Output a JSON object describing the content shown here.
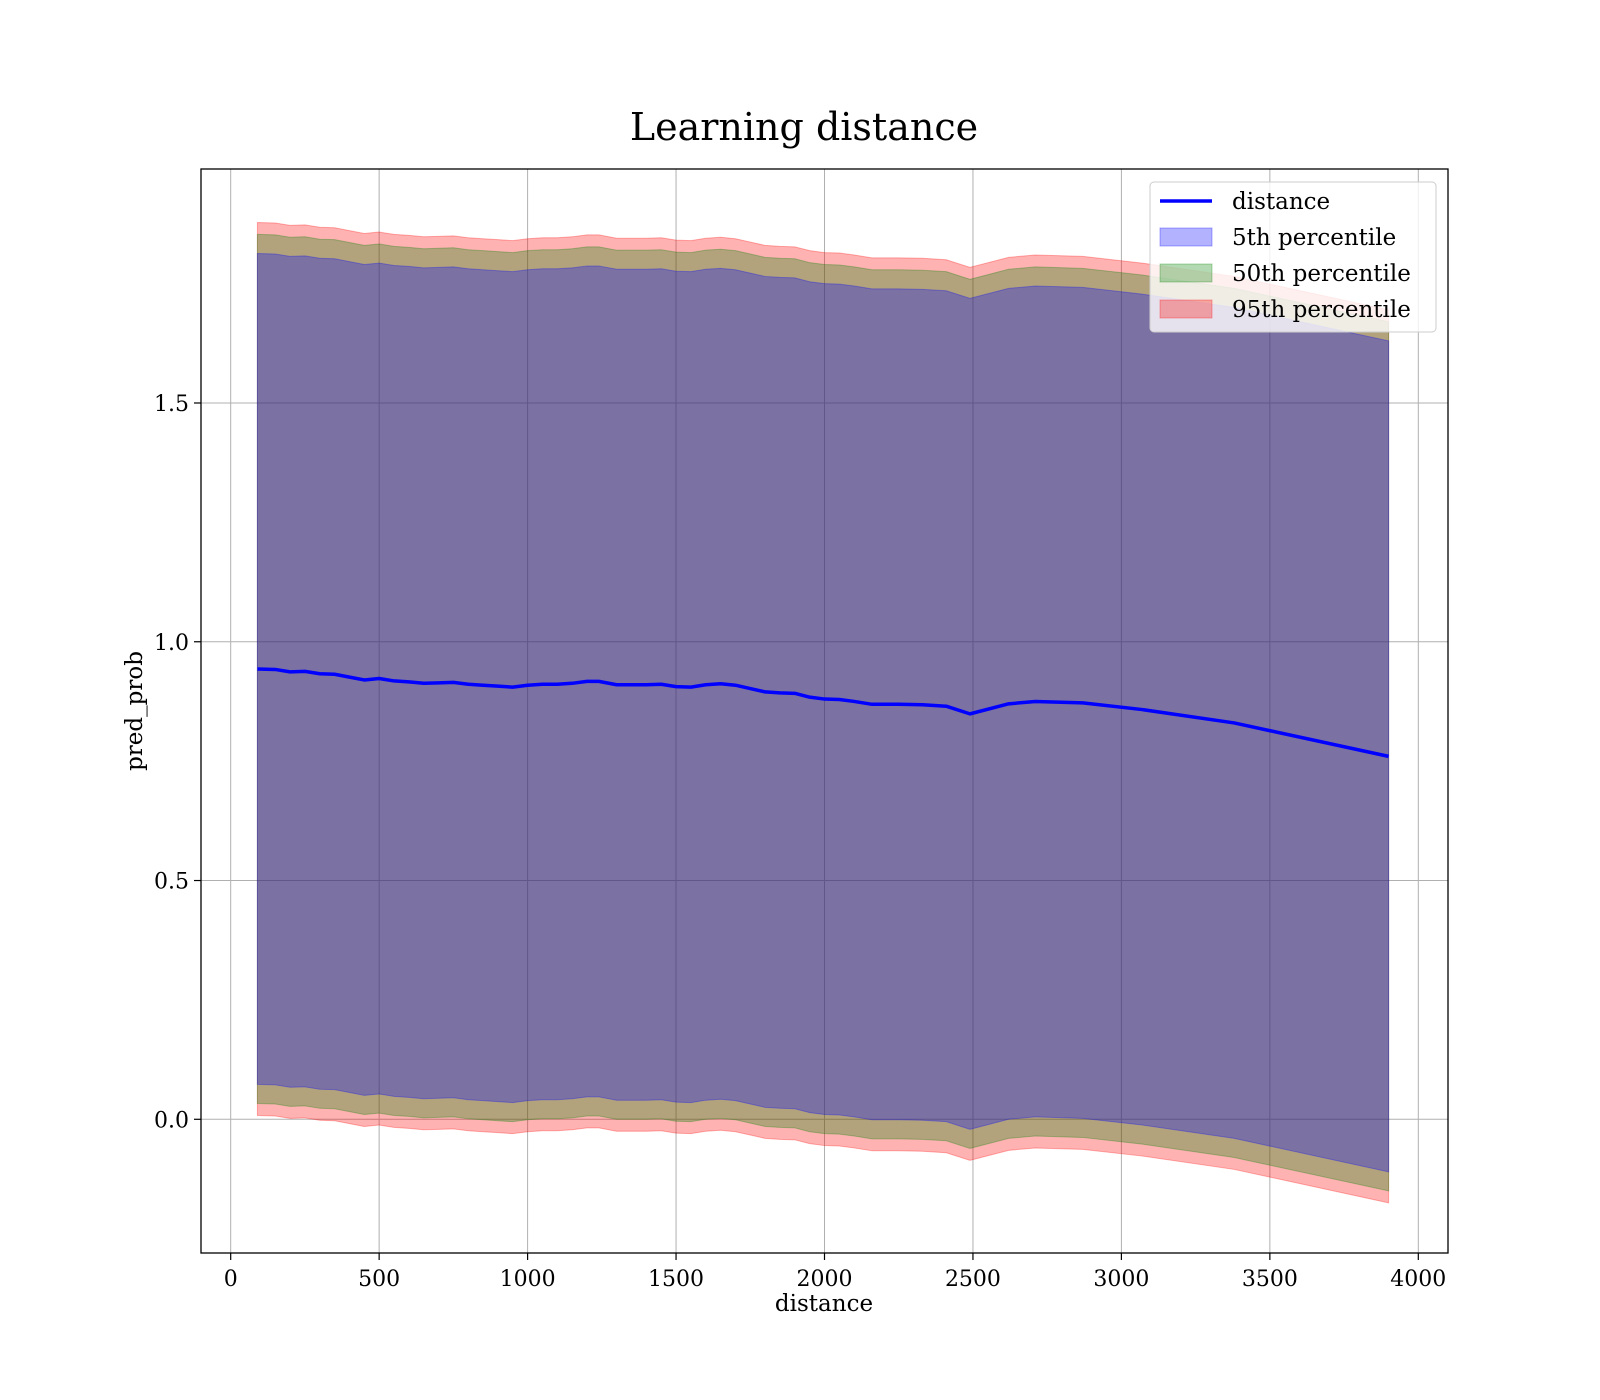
{
  "chart_data": {
    "type": "line",
    "title": "Learning distance",
    "xlabel": "distance",
    "ylabel": "pred_prob",
    "xlim": [
      -100,
      4100
    ],
    "ylim": [
      -0.28,
      1.99
    ],
    "xticks": [
      0,
      500,
      1000,
      1500,
      2000,
      2500,
      3000,
      3500,
      4000
    ],
    "xtick_labels": [
      "0",
      "500",
      "1000",
      "1500",
      "2000",
      "2500",
      "3000",
      "3500",
      "4000"
    ],
    "yticks": [
      0.0,
      0.5,
      1.0,
      1.5
    ],
    "ytick_labels": [
      "0.0",
      "0.5",
      "1.0",
      "1.5"
    ],
    "grid": true,
    "legend_position": "top-right",
    "legend": [
      {
        "label": "distance",
        "kind": "line",
        "color": "#0000ff"
      },
      {
        "label": "5th percentile",
        "kind": "patch",
        "color": "#0000ff"
      },
      {
        "label": "50th percentile",
        "kind": "patch",
        "color": "#008000"
      },
      {
        "label": "95th percentile",
        "kind": "patch",
        "color": "#ff0000"
      }
    ],
    "x": [
      90,
      150,
      200,
      250,
      300,
      350,
      400,
      450,
      500,
      550,
      600,
      650,
      700,
      750,
      800,
      850,
      900,
      950,
      1000,
      1050,
      1100,
      1150,
      1200,
      1240,
      1300,
      1350,
      1400,
      1450,
      1500,
      1550,
      1600,
      1650,
      1700,
      1750,
      1800,
      1850,
      1900,
      1950,
      2000,
      2050,
      2100,
      2160,
      2250,
      2330,
      2410,
      2490,
      2620,
      2710,
      2870,
      3070,
      3380,
      3900
    ],
    "series": [
      {
        "name": "distance",
        "color": "#0000ff",
        "values": [
          0.943,
          0.942,
          0.937,
          0.938,
          0.933,
          0.932,
          0.926,
          0.92,
          0.923,
          0.918,
          0.916,
          0.913,
          0.914,
          0.915,
          0.911,
          0.909,
          0.907,
          0.905,
          0.909,
          0.911,
          0.911,
          0.913,
          0.917,
          0.917,
          0.91,
          0.91,
          0.91,
          0.911,
          0.906,
          0.905,
          0.91,
          0.912,
          0.909,
          0.902,
          0.895,
          0.893,
          0.892,
          0.884,
          0.88,
          0.879,
          0.875,
          0.869,
          0.869,
          0.868,
          0.865,
          0.849,
          0.87,
          0.875,
          0.872,
          0.858,
          0.83,
          0.76
        ]
      }
    ],
    "bands": [
      {
        "name": "5th percentile",
        "color": "#0000ff",
        "upper": [
          1.813,
          1.812,
          1.807,
          1.808,
          1.803,
          1.802,
          1.796,
          1.79,
          1.793,
          1.788,
          1.786,
          1.783,
          1.784,
          1.785,
          1.781,
          1.779,
          1.777,
          1.775,
          1.779,
          1.781,
          1.781,
          1.783,
          1.787,
          1.787,
          1.78,
          1.78,
          1.78,
          1.781,
          1.776,
          1.775,
          1.78,
          1.782,
          1.779,
          1.772,
          1.765,
          1.763,
          1.762,
          1.754,
          1.75,
          1.749,
          1.745,
          1.739,
          1.739,
          1.738,
          1.735,
          1.719,
          1.74,
          1.745,
          1.742,
          1.728,
          1.7,
          1.63
        ],
        "lower": [
          0.073,
          0.072,
          0.067,
          0.068,
          0.063,
          0.062,
          0.056,
          0.05,
          0.053,
          0.048,
          0.046,
          0.043,
          0.044,
          0.045,
          0.041,
          0.039,
          0.037,
          0.035,
          0.039,
          0.041,
          0.041,
          0.043,
          0.047,
          0.047,
          0.04,
          0.04,
          0.04,
          0.041,
          0.036,
          0.035,
          0.04,
          0.042,
          0.039,
          0.032,
          0.025,
          0.023,
          0.022,
          0.014,
          0.01,
          0.009,
          0.005,
          -0.001,
          -0.001,
          -0.002,
          -0.005,
          -0.021,
          0.0,
          0.005,
          0.002,
          -0.012,
          -0.04,
          -0.11
        ]
      },
      {
        "name": "50th percentile",
        "color": "#008000",
        "upper": [
          1.853,
          1.852,
          1.847,
          1.848,
          1.843,
          1.842,
          1.836,
          1.83,
          1.833,
          1.828,
          1.826,
          1.823,
          1.824,
          1.825,
          1.821,
          1.819,
          1.817,
          1.815,
          1.819,
          1.821,
          1.821,
          1.823,
          1.827,
          1.827,
          1.82,
          1.82,
          1.82,
          1.821,
          1.816,
          1.815,
          1.82,
          1.822,
          1.819,
          1.812,
          1.805,
          1.803,
          1.802,
          1.794,
          1.79,
          1.789,
          1.785,
          1.779,
          1.779,
          1.778,
          1.775,
          1.759,
          1.78,
          1.785,
          1.782,
          1.768,
          1.74,
          1.67
        ],
        "lower": [
          0.033,
          0.032,
          0.027,
          0.028,
          0.023,
          0.022,
          0.016,
          0.01,
          0.013,
          0.008,
          0.006,
          0.003,
          0.004,
          0.005,
          0.001,
          -0.001,
          -0.003,
          -0.005,
          -0.001,
          0.001,
          0.001,
          0.003,
          0.007,
          0.007,
          0.0,
          0.0,
          0.0,
          0.001,
          -0.004,
          -0.005,
          0.0,
          0.002,
          -0.001,
          -0.008,
          -0.015,
          -0.017,
          -0.018,
          -0.026,
          -0.03,
          -0.031,
          -0.035,
          -0.041,
          -0.041,
          -0.042,
          -0.045,
          -0.061,
          -0.04,
          -0.035,
          -0.038,
          -0.052,
          -0.08,
          -0.15
        ]
      },
      {
        "name": "95th percentile",
        "color": "#ff0000",
        "upper": [
          1.878,
          1.877,
          1.872,
          1.873,
          1.868,
          1.867,
          1.861,
          1.855,
          1.858,
          1.853,
          1.851,
          1.848,
          1.849,
          1.85,
          1.846,
          1.844,
          1.842,
          1.84,
          1.844,
          1.846,
          1.846,
          1.848,
          1.852,
          1.852,
          1.845,
          1.845,
          1.845,
          1.846,
          1.841,
          1.84,
          1.845,
          1.847,
          1.844,
          1.837,
          1.83,
          1.828,
          1.827,
          1.819,
          1.815,
          1.814,
          1.81,
          1.804,
          1.804,
          1.803,
          1.8,
          1.784,
          1.805,
          1.81,
          1.807,
          1.793,
          1.765,
          1.695
        ],
        "lower": [
          0.008,
          0.007,
          0.002,
          0.003,
          -0.002,
          -0.003,
          -0.009,
          -0.015,
          -0.012,
          -0.017,
          -0.019,
          -0.022,
          -0.021,
          -0.02,
          -0.024,
          -0.026,
          -0.028,
          -0.03,
          -0.026,
          -0.024,
          -0.024,
          -0.022,
          -0.018,
          -0.018,
          -0.025,
          -0.025,
          -0.025,
          -0.024,
          -0.029,
          -0.03,
          -0.025,
          -0.023,
          -0.026,
          -0.033,
          -0.04,
          -0.042,
          -0.043,
          -0.051,
          -0.055,
          -0.056,
          -0.06,
          -0.066,
          -0.066,
          -0.067,
          -0.07,
          -0.086,
          -0.065,
          -0.06,
          -0.063,
          -0.077,
          -0.105,
          -0.175
        ]
      }
    ]
  }
}
